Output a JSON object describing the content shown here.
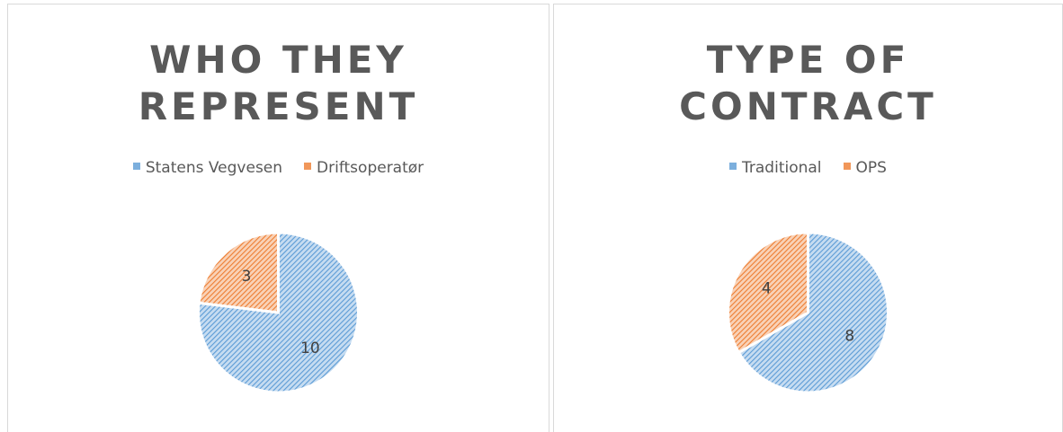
{
  "chart_data": [
    {
      "type": "pie",
      "title": "WHO THEY REPRESENT",
      "categories": [
        "Statens Vegvesen",
        "Driftsoperatør"
      ],
      "values": [
        10,
        3
      ],
      "colors": [
        "#5b9bd5",
        "#ed7d31"
      ],
      "legend": "top"
    },
    {
      "type": "pie",
      "title": "TYPE OF CONTRACT",
      "categories": [
        "Traditional",
        "OPS"
      ],
      "values": [
        8,
        4
      ],
      "colors": [
        "#5b9bd5",
        "#ed7d31"
      ],
      "legend": "top"
    }
  ]
}
